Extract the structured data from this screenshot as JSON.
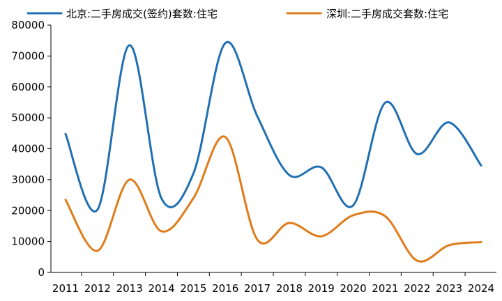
{
  "chart_data": {
    "type": "line",
    "title": "",
    "xlabel": "",
    "ylabel": "",
    "x": [
      "2011",
      "2012",
      "2013",
      "2014",
      "2015",
      "2016",
      "2017",
      "2018",
      "2019",
      "2020",
      "2021",
      "2022",
      "2023",
      "2024"
    ],
    "ylim": [
      0,
      80000
    ],
    "yticks": [
      0,
      10000,
      20000,
      30000,
      40000,
      50000,
      60000,
      70000,
      80000
    ],
    "grid": false,
    "legend_position": "top",
    "series": [
      {
        "name": "北京:二手房成交(签约)套数:住宅",
        "color": "#1f6fb2",
        "values": [
          44800,
          20300,
          73500,
          24000,
          32000,
          74200,
          50500,
          31500,
          34000,
          21700,
          54900,
          38300,
          48500,
          34600
        ]
      },
      {
        "name": "深圳:二手房成交套数:住宅",
        "color": "#e07b1a",
        "values": [
          23500,
          7000,
          30000,
          13300,
          24000,
          43800,
          10600,
          16000,
          11700,
          18500,
          18200,
          3800,
          8800,
          9800
        ]
      }
    ]
  }
}
